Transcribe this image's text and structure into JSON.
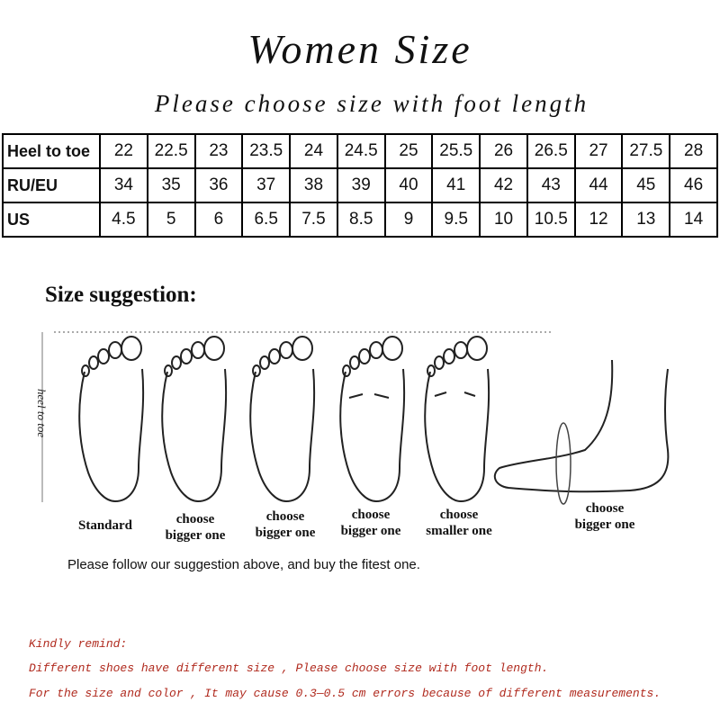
{
  "header": {
    "title": "Women Size",
    "subtitle": "Please choose size with foot length"
  },
  "table": {
    "rows": [
      {
        "label": "Heel to toe",
        "cells": [
          "22",
          "22.5",
          "23",
          "23.5",
          "24",
          "24.5",
          "25",
          "25.5",
          "26",
          "26.5",
          "27",
          "27.5",
          "28"
        ]
      },
      {
        "label": "RU/EU",
        "cells": [
          "34",
          "35",
          "36",
          "37",
          "38",
          "39",
          "40",
          "41",
          "42",
          "43",
          "44",
          "45",
          "46"
        ]
      },
      {
        "label": "US",
        "cells": [
          "4.5",
          "5",
          "6",
          "6.5",
          "7.5",
          "8.5",
          "9",
          "9.5",
          "10",
          "10.5",
          "12",
          "13",
          "14"
        ]
      }
    ]
  },
  "suggestion": {
    "heading": "Size suggestion:",
    "axis_label": "heel to toe",
    "feet": [
      [
        "Standard"
      ],
      [
        "choose",
        "bigger one"
      ],
      [
        "choose",
        "bigger one"
      ],
      [
        "choose",
        "bigger one"
      ],
      [
        "choose",
        "smaller one"
      ],
      [
        "choose",
        "bigger one"
      ]
    ],
    "note": "Please follow our suggestion above, and buy the fitest one."
  },
  "remind": [
    "Kindly remind:",
    "Different shoes have different size , Please choose size with foot length.",
    "For the size and color , It may cause 0.3—0.5 cm errors because of different measurements."
  ]
}
